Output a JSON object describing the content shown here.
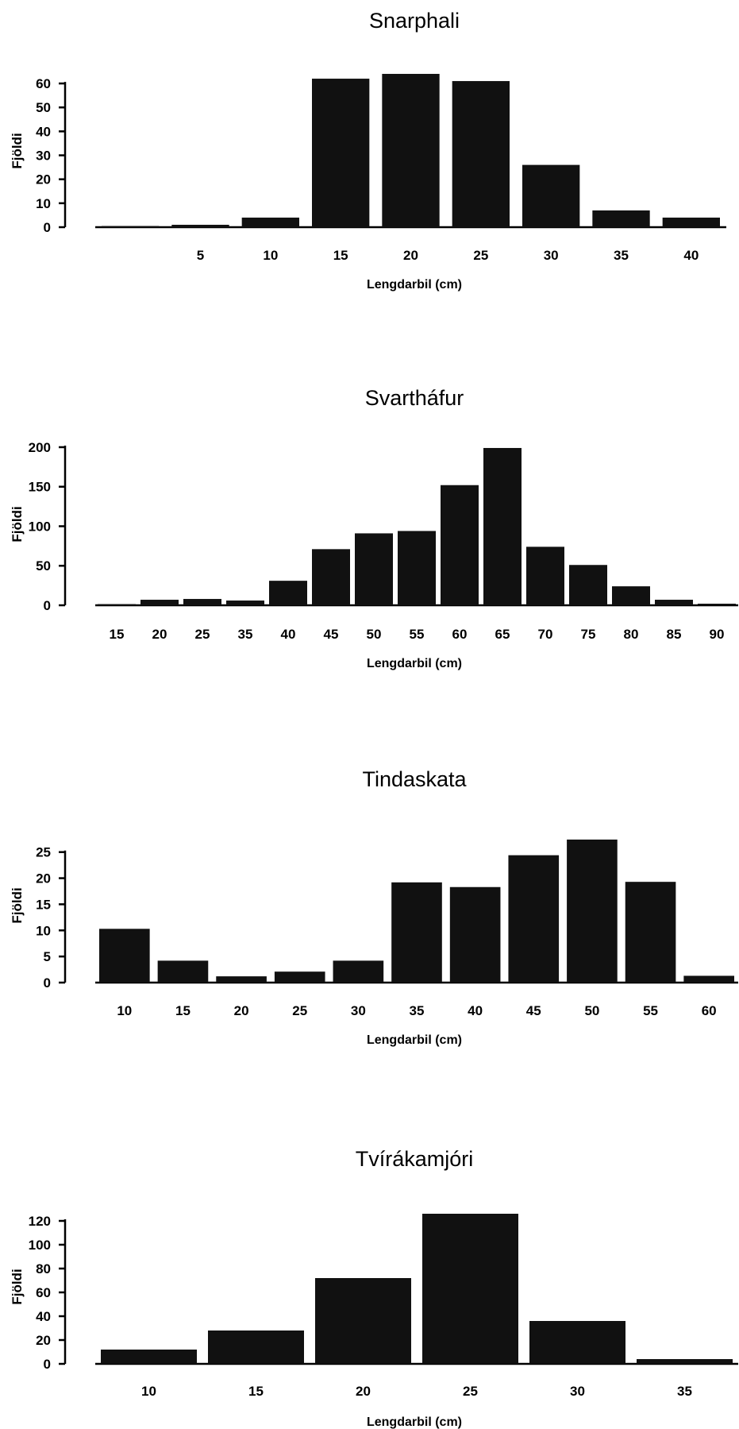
{
  "chart_data": [
    {
      "type": "bar",
      "title": "Snarphali",
      "xlabel": "Lengdarbil (cm)",
      "ylabel": "Fjöldi",
      "categories": [
        "",
        "5",
        "10",
        "15",
        "20",
        "25",
        "30",
        "35",
        "40"
      ],
      "values": [
        0,
        1,
        4,
        62,
        64,
        61,
        26,
        7,
        4
      ],
      "yticks": [
        0,
        10,
        20,
        30,
        40,
        50,
        60
      ],
      "ylim": [
        0,
        65
      ],
      "grid": false
    },
    {
      "type": "bar",
      "title": "Svartháfur",
      "xlabel": "Lengdarbil (cm)",
      "ylabel": "Fjöldi",
      "categories": [
        "15",
        "20",
        "25",
        "35",
        "40",
        "45",
        "50",
        "55",
        "60",
        "65",
        "70",
        "75",
        "80",
        "85",
        "90"
      ],
      "values": [
        1,
        7,
        8,
        6,
        31,
        71,
        91,
        94,
        152,
        199,
        74,
        51,
        24,
        7,
        2
      ],
      "yticks": [
        0,
        50,
        100,
        150,
        200
      ],
      "ylim": [
        0,
        205
      ],
      "grid": false
    },
    {
      "type": "bar",
      "title": "Tindaskata",
      "xlabel": "Lengdarbil (cm)",
      "ylabel": "Fjöldi",
      "categories": [
        "10",
        "15",
        "20",
        "25",
        "30",
        "35",
        "40",
        "45",
        "50",
        "55",
        "60"
      ],
      "values": [
        10.3,
        4.2,
        1.2,
        2.1,
        4.2,
        19.2,
        18.3,
        24.4,
        27.4,
        19.3,
        1.3
      ],
      "yticks": [
        0,
        5,
        10,
        15,
        20,
        25
      ],
      "ylim": [
        0,
        28
      ],
      "grid": false
    },
    {
      "type": "bar",
      "title": "Tvírákamjóri",
      "xlabel": "Lengdarbil (cm)",
      "ylabel": "Fjöldi",
      "categories": [
        "10",
        "15",
        "20",
        "25",
        "30",
        "35"
      ],
      "values": [
        12,
        28,
        72,
        126,
        36,
        4
      ],
      "yticks": [
        0,
        20,
        40,
        60,
        80,
        100,
        120
      ],
      "ylim": [
        0,
        128
      ],
      "grid": false
    }
  ]
}
